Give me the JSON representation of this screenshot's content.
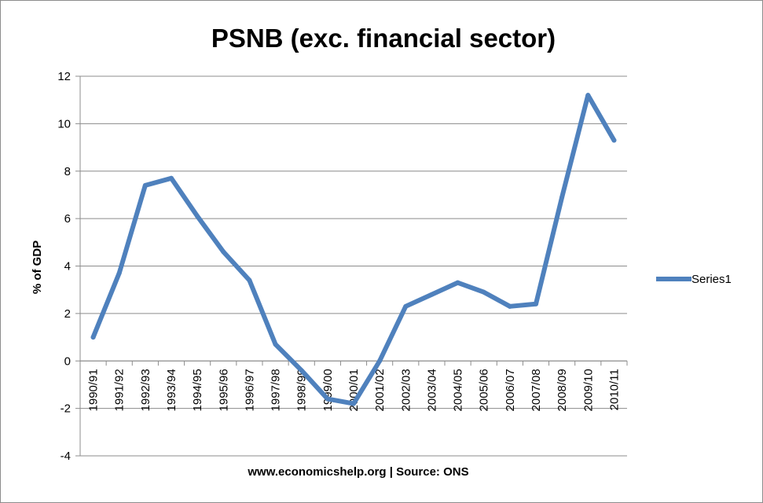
{
  "chart_data": {
    "type": "line",
    "title": "PSNB (exc. financial sector)",
    "xlabel": "www.economicshelp.org | Source: ONS",
    "ylabel": "% of GDP",
    "ylim": [
      -4,
      12
    ],
    "yticks": [
      -4,
      -2,
      0,
      2,
      4,
      6,
      8,
      10,
      12
    ],
    "grid": true,
    "legend_position": "right",
    "categories": [
      "1990/91",
      "1991/92",
      "1992/93",
      "1993/94",
      "1994/95",
      "1995/96",
      "1996/97",
      "1997/98",
      "1998/99",
      "1999/00",
      "2000/01",
      "2001/02",
      "2002/03",
      "2003/04",
      "2004/05",
      "2005/06",
      "2006/07",
      "2007/08",
      "2008/09",
      "2009/10",
      "2010/11"
    ],
    "series": [
      {
        "name": "Series1",
        "color": "#4f81bd",
        "values": [
          1.0,
          3.7,
          7.4,
          7.7,
          6.1,
          4.6,
          3.4,
          0.7,
          -0.4,
          -1.6,
          -1.8,
          0.0,
          2.3,
          2.8,
          3.3,
          2.9,
          2.3,
          2.4,
          6.9,
          11.2,
          9.3
        ]
      }
    ]
  }
}
